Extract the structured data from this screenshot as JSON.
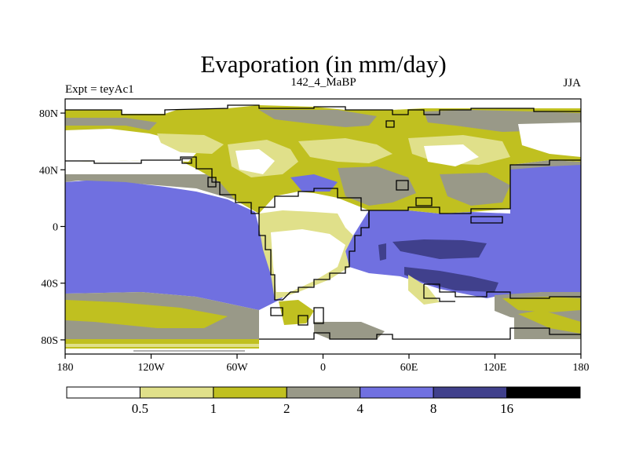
{
  "chart_data": {
    "type": "heatmap",
    "title": "Evaporation (in mm/day)",
    "left_label": "Expt = teyAc1",
    "center_label": "142_4_MaBP",
    "right_label": "JJA",
    "x_ticks": [
      {
        "value": -180,
        "label": "180"
      },
      {
        "value": -120,
        "label": "120W"
      },
      {
        "value": -60,
        "label": "60W"
      },
      {
        "value": 0,
        "label": "0"
      },
      {
        "value": 60,
        "label": "60E"
      },
      {
        "value": 120,
        "label": "120E"
      },
      {
        "value": 180,
        "label": "180"
      }
    ],
    "y_ticks": [
      {
        "value": 80,
        "label": "80N"
      },
      {
        "value": 40,
        "label": "40N"
      },
      {
        "value": 0,
        "label": "0"
      },
      {
        "value": -40,
        "label": "40S"
      },
      {
        "value": -80,
        "label": "80S"
      }
    ],
    "x_range": [
      -180,
      180
    ],
    "y_range": [
      -90,
      90
    ],
    "contour_levels": [
      0.5,
      1,
      2,
      4,
      8,
      16
    ],
    "colorbar_labels": [
      "0.5",
      "1",
      "2",
      "4",
      "8",
      "16"
    ],
    "colors": [
      "#ffffff",
      "#e0e08a",
      "#c0c020",
      "#999988",
      "#7070e0",
      "#40408c",
      "#000000"
    ]
  }
}
